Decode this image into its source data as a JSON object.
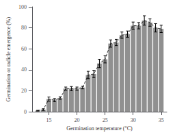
{
  "chart_data": {
    "type": "bar",
    "x": [
      13,
      14,
      15,
      16,
      17,
      18,
      19,
      20,
      21,
      22,
      23,
      24,
      25,
      26,
      27,
      28,
      29,
      30,
      31,
      32,
      33,
      34,
      35
    ],
    "values": [
      1,
      2,
      12,
      11,
      13,
      22,
      22,
      22,
      23,
      35,
      36,
      46,
      50,
      65,
      66,
      73,
      74,
      82,
      82,
      87,
      85,
      80,
      79
    ],
    "errors": [
      0.3,
      0.8,
      2.0,
      1.5,
      1.2,
      1.5,
      2.0,
      1.5,
      1.2,
      3.5,
      3.5,
      4.0,
      3.5,
      3.5,
      3.0,
      3.0,
      3.0,
      3.5,
      3.0,
      4.5,
      3.5,
      4.0,
      3.5
    ],
    "color": "#909090",
    "line_style": "dashed",
    "xlabel": "Germination temperature (°C)",
    "ylabel": "Germination or radicle emergence (%)",
    "xlim": [
      12.0,
      36.0
    ],
    "xticks": [
      15,
      20,
      25,
      30,
      35
    ],
    "ylim": [
      0,
      100
    ],
    "yticks": [
      0,
      20,
      40,
      60,
      80,
      100
    ],
    "grid": false
  }
}
